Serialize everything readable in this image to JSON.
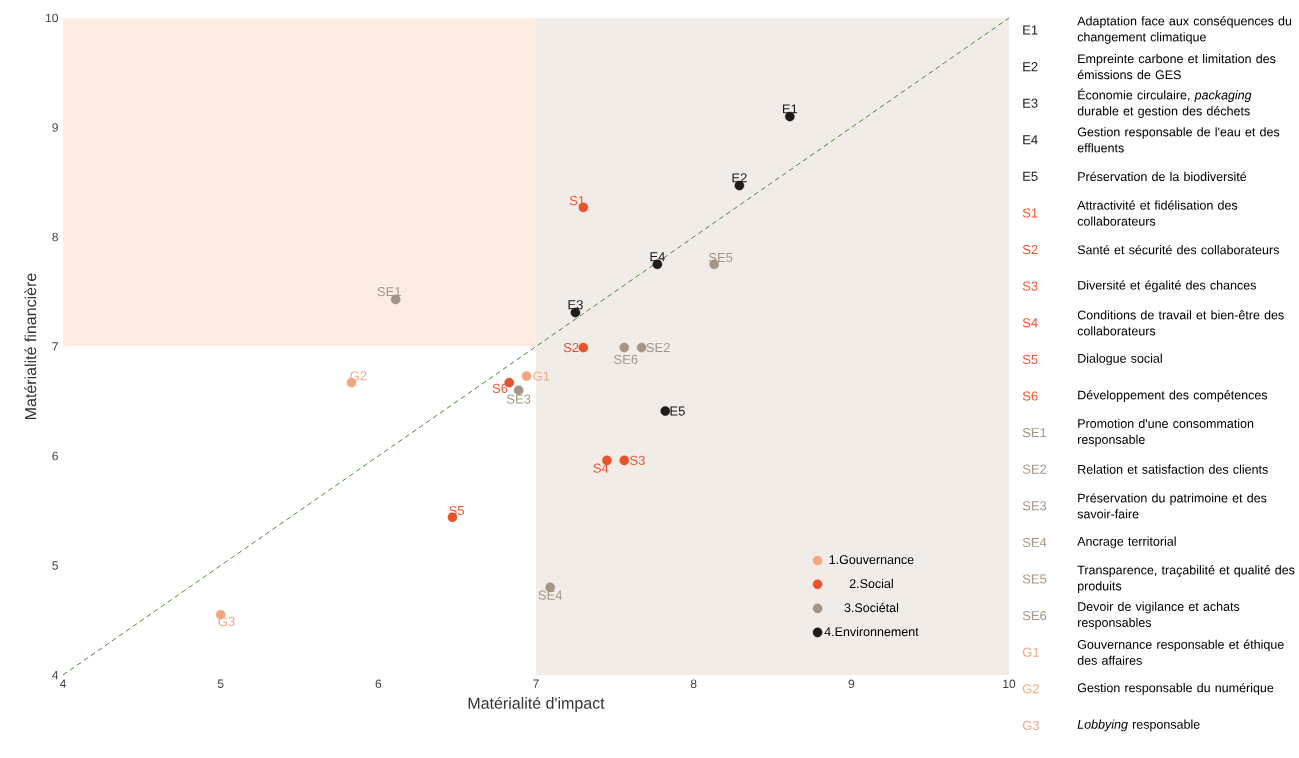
{
  "chart_data": {
    "type": "scatter",
    "xlabel": "Matérialité d'impact",
    "ylabel": "Matérialité financière",
    "xlim": [
      4,
      10
    ],
    "ylim": [
      4,
      10
    ],
    "xticks": [
      4,
      5,
      6,
      7,
      8,
      9,
      10
    ],
    "yticks": [
      4,
      5,
      6,
      7,
      8,
      9,
      10
    ],
    "grid": false,
    "legend": "bottom right",
    "marker": "circle",
    "bands": [
      {
        "axis": "y",
        "from": 7,
        "to": 10,
        "color": "#fdece3"
      },
      {
        "axis": "x",
        "from": 7,
        "to": 10,
        "color": "#f1ece8"
      }
    ],
    "series": [
      {
        "name": "1.Gouvernance",
        "color": "#f6a580",
        "x": [
          6.94,
          5.83,
          5.0
        ],
        "values": [
          6.73,
          6.67,
          4.55
        ]
      },
      {
        "name": "2.Social",
        "color": "#e9532c",
        "x": [
          7.3,
          7.3,
          7.56,
          7.45,
          6.47,
          6.83
        ],
        "values": [
          8.27,
          6.99,
          5.96,
          5.96,
          5.44,
          6.67
        ]
      },
      {
        "name": "3.Sociétal",
        "color": "#a39587",
        "x": [
          6.11,
          7.67,
          6.89,
          7.09,
          8.13,
          7.56
        ],
        "values": [
          7.43,
          6.99,
          6.6,
          4.8,
          7.75,
          6.99
        ]
      },
      {
        "name": "4.Environnement",
        "color": "#1c1c1c",
        "x": [
          8.61,
          8.29,
          7.25,
          7.77,
          7.82
        ],
        "values": [
          9.1,
          8.47,
          7.31,
          7.75,
          6.41
        ]
      },
      {
        "type": "line",
        "color": "#4e8a3e",
        "line_style": "dashed",
        "marker": "none",
        "x": [
          4,
          10
        ],
        "values": [
          4,
          10
        ]
      }
    ],
    "annotations": [
      {
        "text": "E1",
        "x": 8.61,
        "y": 9.1
      },
      {
        "text": "E2",
        "x": 8.29,
        "y": 8.47
      },
      {
        "text": "E3",
        "x": 7.25,
        "y": 7.31
      },
      {
        "text": "E4",
        "x": 7.77,
        "y": 7.75
      },
      {
        "text": "E5",
        "x": 7.82,
        "y": 6.41
      },
      {
        "text": "S1",
        "x": 7.3,
        "y": 8.27
      },
      {
        "text": "S2",
        "x": 7.3,
        "y": 6.99
      },
      {
        "text": "S3",
        "x": 7.56,
        "y": 5.96
      },
      {
        "text": "S4",
        "x": 7.45,
        "y": 5.96
      },
      {
        "text": "S5",
        "x": 6.47,
        "y": 5.44
      },
      {
        "text": "S6",
        "x": 6.83,
        "y": 6.67
      },
      {
        "text": "SE1",
        "x": 6.11,
        "y": 7.43
      },
      {
        "text": "SE2",
        "x": 7.67,
        "y": 6.99
      },
      {
        "text": "SE3",
        "x": 6.89,
        "y": 6.6
      },
      {
        "text": "SE4",
        "x": 7.09,
        "y": 4.8
      },
      {
        "text": "SE5",
        "x": 8.13,
        "y": 7.75
      },
      {
        "text": "SE6",
        "x": 7.56,
        "y": 6.99
      },
      {
        "text": "G1",
        "x": 6.94,
        "y": 6.73
      },
      {
        "text": "G2",
        "x": 5.83,
        "y": 6.67
      },
      {
        "text": "G3",
        "x": 5.0,
        "y": 4.55
      },
      "Adaptation face aux conséquences du changement climatique",
      "Empreinte carbone et limitation des émissions de GES",
      "Économie circulaire, *packaging* durable et gestion des déchets",
      "Gestion responsable de l'eau et des effluents",
      "Préservation de la biodiversité",
      "Attractivité et fidélisation des collaborateurs",
      "Santé et sécurité des collaborateurs",
      "Diversité et égalité des chances",
      "Conditions de travail et bien-être des collaborateurs",
      "Dialogue social",
      "Développement des compétences",
      "Promotion d'une consommation responsable",
      "Relation et satisfaction des clients",
      "Préservation du patrimoine et des savoir-faire",
      "Ancrage territorial",
      "Transparence, traçabilité et qualité des produits",
      "Devoir de vigilance et achats responsables",
      "Gouvernance responsable et éthique des affaires",
      "Gestion responsable du numérique",
      "*Lobbying* responsable"
    ]
  }
}
